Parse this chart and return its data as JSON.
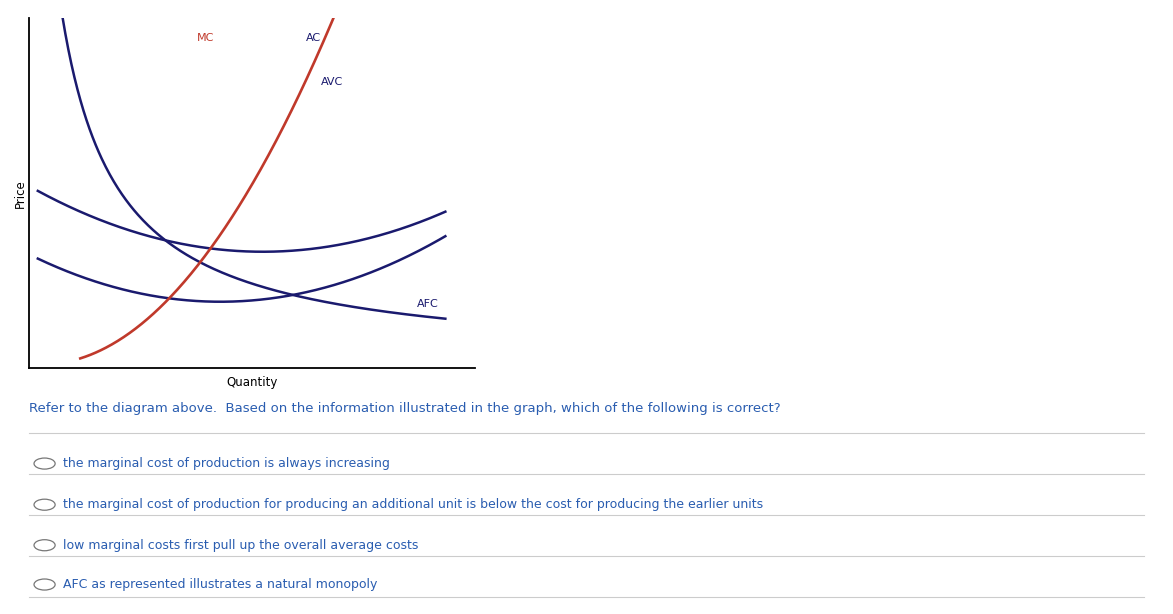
{
  "ylabel": "Price",
  "xlabel": "Quantity",
  "curve_color_blue": "#1a1a6e",
  "curve_color_red": "#c0392b",
  "bg_color": "#ffffff",
  "question_text": "Refer to the diagram above.  Based on the information illustrated in the graph, which of the following is correct?",
  "options": [
    "the marginal cost of production is always increasing",
    "the marginal cost of production for producing an additional unit is below the cost for producing the earlier units",
    "low marginal costs first pull up the overall average costs",
    "AFC as represented illustrates a natural monopoly"
  ],
  "question_color": "#2a5db0",
  "option_color": "#2a5db0",
  "option3_color": "#2a5db0",
  "divider_color": "#cccccc",
  "fig_width": 11.73,
  "fig_height": 6.14
}
